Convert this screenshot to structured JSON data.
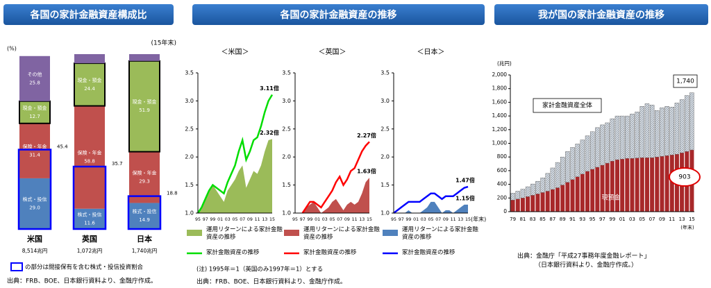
{
  "headers": [
    "各国の家計金融資産構成比",
    "各国の家計金融資産の推移",
    "我が国の家計金融資産の推移"
  ],
  "chart_data": [
    {
      "type": "stacked_bar",
      "y_unit": "(%)",
      "date_note": "(15年末)",
      "categories": [
        "米国",
        "英国",
        "日本"
      ],
      "totals": [
        "8,514兆円",
        "1,072兆円",
        "1,740兆円"
      ],
      "ylim": [
        0,
        100
      ],
      "series": [
        {
          "name": "株式・投信",
          "color": "#4f81bd",
          "values": [
            29.0,
            11.6,
            14.9
          ],
          "value_labels": [
            "29.0",
            "11.6",
            "14.9"
          ]
        },
        {
          "name": "保険・年金",
          "color": "#c0504d",
          "values": [
            31.4,
            58.8,
            29.3
          ]
        },
        {
          "name": "現金・預金",
          "color": "#9bbb59",
          "values": [
            12.7,
            24.4,
            51.9
          ]
        },
        {
          "name": "その他",
          "color": "#8064a2",
          "values": [
            25.8,
            5.2,
            3.9
          ],
          "value_labels": [
            "25.8",
            null,
            null
          ]
        }
      ],
      "indirect": {
        "values": [
          45.4,
          35.7,
          18.8
        ],
        "color": "#0000ff"
      },
      "legend_note": "の部分は間接保有を含む株式・投信投資割合",
      "source": "出典：FRB、BOE、日本銀行資料より、金融庁作成。"
    },
    {
      "type": "line_area",
      "title": "＜米国＞",
      "categories": [
        "95",
        null,
        "97",
        null,
        "99",
        null,
        "01",
        null,
        "03",
        null,
        "05",
        null,
        "07",
        null,
        "09",
        null,
        "11",
        null,
        "13",
        null,
        "15"
      ],
      "ylim": [
        1,
        3.5
      ],
      "yticks": [
        {
          "value": 1,
          "label": "1.0"
        },
        1.5,
        {
          "value": 2,
          "label": "2.0"
        },
        2.5,
        {
          "value": 3,
          "label": "3.0"
        },
        3.5
      ],
      "series": [
        {
          "name": "運用リターンによる家計金融資産の推移",
          "kind": "area",
          "color": "#9bbb59",
          "end_label": "2.32倍",
          "values": [
            1.0,
            1.1,
            1.25,
            1.4,
            1.5,
            1.4,
            1.3,
            1.2,
            1.4,
            1.5,
            1.6,
            1.75,
            1.85,
            1.45,
            1.6,
            1.75,
            1.7,
            1.85,
            2.1,
            2.3,
            2.32
          ]
        },
        {
          "name": "家計金融資産の推移",
          "kind": "line",
          "color": "#00dd00",
          "end_label": "3.11倍",
          "values": [
            1.0,
            1.1,
            1.25,
            1.4,
            1.5,
            1.45,
            1.4,
            1.35,
            1.55,
            1.7,
            1.85,
            2.1,
            2.3,
            1.95,
            2.1,
            2.3,
            2.35,
            2.55,
            2.8,
            3.0,
            3.11
          ]
        }
      ]
    },
    {
      "type": "line_area",
      "title": "＜英国＞",
      "categories": [
        "95",
        null,
        "97",
        null,
        "99",
        null,
        "01",
        null,
        "03",
        null,
        "05",
        null,
        "07",
        null,
        "09",
        null,
        "11",
        null,
        "13",
        null,
        "15"
      ],
      "ylim": [
        1,
        3.5
      ],
      "yticks": [
        {
          "value": 1,
          "label": "1.0"
        },
        1.5,
        {
          "value": 2,
          "label": "2.0"
        },
        2.5,
        {
          "value": 3,
          "label": "3.0"
        },
        3.5
      ],
      "series": [
        {
          "name": "運用リターンによる家計金融資産の推移",
          "kind": "area",
          "color": "#c0504d",
          "end_label": "1.63倍",
          "values": [
            null,
            null,
            1.0,
            1.1,
            1.15,
            1.2,
            1.1,
            1.0,
            1.05,
            1.1,
            1.2,
            1.25,
            1.15,
            1.05,
            1.15,
            1.2,
            1.15,
            1.2,
            1.35,
            1.55,
            1.63
          ]
        },
        {
          "name": "家計金融資産の推移",
          "kind": "line",
          "color": "#ff0000",
          "end_label": "2.27倍",
          "values": [
            null,
            null,
            1.0,
            1.1,
            1.2,
            1.2,
            1.15,
            1.1,
            1.2,
            1.3,
            1.4,
            1.55,
            1.65,
            1.5,
            1.6,
            1.75,
            1.8,
            1.95,
            2.1,
            2.2,
            2.27
          ]
        }
      ]
    },
    {
      "type": "line_area",
      "title": "＜日本＞",
      "x_unit": "(年末)",
      "categories": [
        "95",
        null,
        "97",
        null,
        "99",
        null,
        "01",
        null,
        "03",
        null,
        "05",
        null,
        "07",
        null,
        "09",
        null,
        "11",
        null,
        "13",
        null,
        "15"
      ],
      "ylim": [
        1,
        3.5
      ],
      "yticks": [
        {
          "value": 1,
          "label": "1.0"
        },
        1.5,
        {
          "value": 2,
          "label": "2.0"
        },
        2.5,
        {
          "value": 3,
          "label": "3.0"
        },
        3.5
      ],
      "series": [
        {
          "name": "運用リターンによる家計金融資産の推移",
          "kind": "area",
          "color": "#4f81bd",
          "end_label": "1.15倍",
          "values": [
            1.0,
            1.0,
            1.0,
            1.0,
            1.05,
            1.0,
            1.0,
            1.0,
            1.05,
            1.1,
            1.2,
            1.2,
            1.1,
            1.0,
            1.05,
            1.05,
            1.0,
            1.05,
            1.1,
            1.15,
            1.15
          ]
        },
        {
          "name": "家計金融資産の推移",
          "kind": "line",
          "color": "#0000ff",
          "end_label": "1.47倍",
          "values": [
            1.0,
            1.05,
            1.1,
            1.15,
            1.2,
            1.2,
            1.2,
            1.2,
            1.25,
            1.3,
            1.35,
            1.35,
            1.3,
            1.25,
            1.3,
            1.3,
            1.3,
            1.35,
            1.4,
            1.45,
            1.47
          ]
        }
      ]
    },
    {
      "type": "stacked_bar_ts",
      "y_unit": "(兆円)",
      "x_unit": "(年末)",
      "categories": [
        "79",
        null,
        "81",
        null,
        "83",
        null,
        "85",
        null,
        "87",
        null,
        "89",
        null,
        "91",
        null,
        "93",
        null,
        "95",
        null,
        "97",
        null,
        "99",
        null,
        "01",
        null,
        "03",
        null,
        "05",
        null,
        "07",
        null,
        "09",
        null,
        "11",
        null,
        "13",
        null,
        "15"
      ],
      "ylim": [
        0,
        2000
      ],
      "yticks": [
        0,
        200,
        400,
        600,
        800,
        {
          "value": 1000,
          "label": "1,000"
        },
        {
          "value": 1200,
          "label": "1,200"
        },
        {
          "value": 1400,
          "label": "1,400"
        },
        {
          "value": 1600,
          "label": "1,600"
        },
        {
          "value": 1800,
          "label": "1,800"
        },
        {
          "value": 2000,
          "label": "2,000"
        }
      ],
      "series": [
        {
          "name": "現預金",
          "color": "#a8282a",
          "values": [
            170,
            185,
            200,
            220,
            240,
            260,
            280,
            300,
            325,
            350,
            390,
            430,
            470,
            510,
            550,
            590,
            620,
            650,
            680,
            710,
            740,
            760,
            770,
            780,
            780,
            785,
            790,
            790,
            790,
            800,
            810,
            820,
            830,
            840,
            860,
            880,
            903
          ],
          "value_labels": [
            null,
            null,
            null,
            null,
            null,
            null,
            null,
            null,
            null,
            null,
            null,
            null,
            null,
            null,
            null,
            null,
            null,
            null,
            null,
            null,
            null,
            null,
            null,
            null,
            null,
            null,
            null,
            null,
            null,
            null,
            null,
            null,
            null,
            null,
            null,
            null,
            "903"
          ]
        },
        {
          "name": "家計金融資産全体",
          "color": "#c8d0dc",
          "values": [
            100,
            115,
            130,
            145,
            165,
            185,
            215,
            260,
            315,
            370,
            410,
            450,
            470,
            480,
            500,
            520,
            550,
            580,
            590,
            590,
            620,
            640,
            630,
            620,
            650,
            675,
            750,
            790,
            770,
            680,
            710,
            720,
            700,
            750,
            780,
            820,
            837
          ]
        }
      ],
      "annotations": [
        "1,740"
      ],
      "source": [
        "出典：金融庁「平成27事務年度金融レポート」",
        "（日本銀行資料より、金融庁作成。）"
      ]
    }
  ],
  "panel2_note": "(注) 1995年＝1（英国のみ1997年＝1）とする",
  "panel2_source": "出典：FRB、BOE、日本銀行資料より、金融庁作成。"
}
